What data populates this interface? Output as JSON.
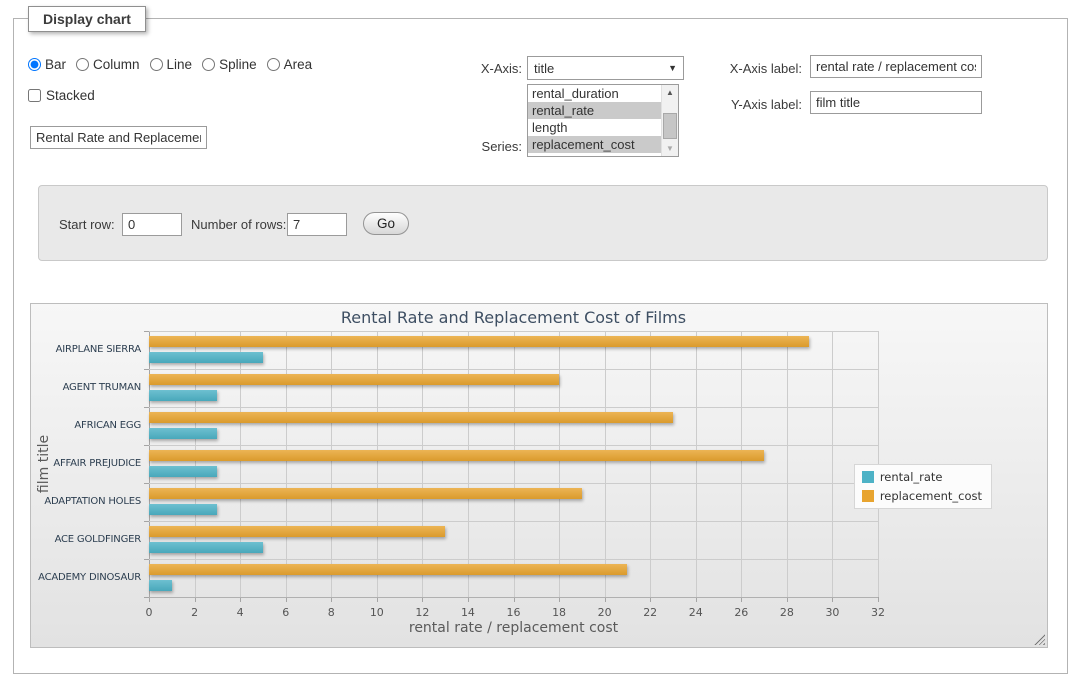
{
  "panel": {
    "legend": "Display chart"
  },
  "chart_type_options": [
    {
      "label": "Bar",
      "selected": true
    },
    {
      "label": "Column",
      "selected": false
    },
    {
      "label": "Line",
      "selected": false
    },
    {
      "label": "Spline",
      "selected": false
    },
    {
      "label": "Area",
      "selected": false
    }
  ],
  "stacked": {
    "label": "Stacked",
    "checked": false
  },
  "title_input": {
    "value": "Rental Rate and Replacement Cost of Films"
  },
  "x_axis": {
    "label": "X-Axis:",
    "selected": "title"
  },
  "series": {
    "label": "Series:",
    "options": [
      {
        "label": "rental_duration",
        "selected": false
      },
      {
        "label": "rental_rate",
        "selected": true
      },
      {
        "label": "length",
        "selected": false
      },
      {
        "label": "replacement_cost",
        "selected": true
      }
    ]
  },
  "x_axis_label": {
    "label": "X-Axis label:",
    "value": "rental rate / replacement cost"
  },
  "y_axis_label": {
    "label": "Y-Axis label:",
    "value": "film title"
  },
  "row_controls": {
    "start_row_label": "Start row:",
    "start_row_value": "0",
    "num_rows_label": "Number of rows:",
    "num_rows_value": "7",
    "go_label": "Go"
  },
  "chart_data": {
    "type": "bar",
    "title": "Rental Rate and Replacement Cost of Films",
    "xlabel": "rental rate / replacement cost",
    "ylabel": "film title",
    "categories": [
      "AIRPLANE SIERRA",
      "AGENT TRUMAN",
      "AFRICAN EGG",
      "AFFAIR PREJUDICE",
      "ADAPTATION HOLES",
      "ACE GOLDFINGER",
      "ACADEMY DINOSAUR"
    ],
    "series": [
      {
        "name": "rental_rate",
        "color": "#4DB2C6",
        "values": [
          4.99,
          2.99,
          2.99,
          2.99,
          2.99,
          4.99,
          0.99
        ]
      },
      {
        "name": "replacement_cost",
        "color": "#E8A42F",
        "values": [
          28.99,
          17.99,
          22.99,
          26.99,
          18.99,
          12.99,
          20.99
        ]
      }
    ],
    "xlim": [
      0,
      32
    ],
    "tick_step": 2,
    "grid": true,
    "legend_position": "right",
    "grid_color": "#cccccc",
    "background": "gray-gradient"
  }
}
